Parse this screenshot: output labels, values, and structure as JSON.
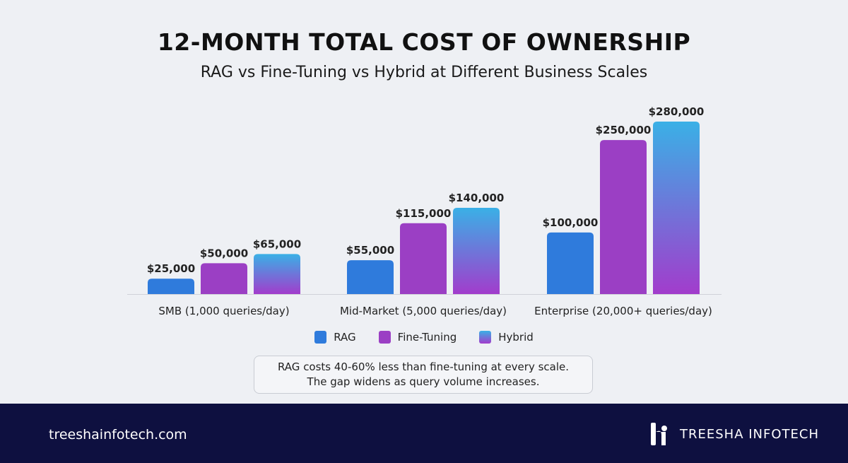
{
  "chart_data": {
    "type": "bar",
    "title": "12-MONTH TOTAL COST OF OWNERSHIP",
    "subtitle": "RAG vs Fine-Tuning vs Hybrid at Different Business Scales",
    "categories": [
      "SMB (1,000 queries/day)",
      "Mid-Market (5,000 queries/day)",
      "Enterprise (20,000+ queries/day)"
    ],
    "series": [
      {
        "name": "RAG",
        "values": [
          25000,
          55000,
          100000
        ],
        "labels": [
          "$25,000",
          "$55,000",
          "$100,000"
        ],
        "color": "#2f7bdc"
      },
      {
        "name": "Fine-Tuning",
        "values": [
          50000,
          115000,
          250000
        ],
        "labels": [
          "$50,000",
          "$115,000",
          "$250,000"
        ],
        "color": "#9b3fc4"
      },
      {
        "name": "Hybrid",
        "values": [
          65000,
          140000,
          280000
        ],
        "labels": [
          "$65,000",
          "$140,000",
          "$280,000"
        ],
        "color": "#3ab0e6",
        "color2": "#a23ccc"
      }
    ],
    "ylim": [
      0,
      280000
    ],
    "grid": false,
    "legend_position": "bottom"
  },
  "note": {
    "line1": "RAG costs 40-60% less than fine-tuning at every scale.",
    "line2": "The gap widens as query volume increases."
  },
  "footer": {
    "url": "treeshainfotech.com",
    "brand": "TREESHA INFOTECH"
  }
}
